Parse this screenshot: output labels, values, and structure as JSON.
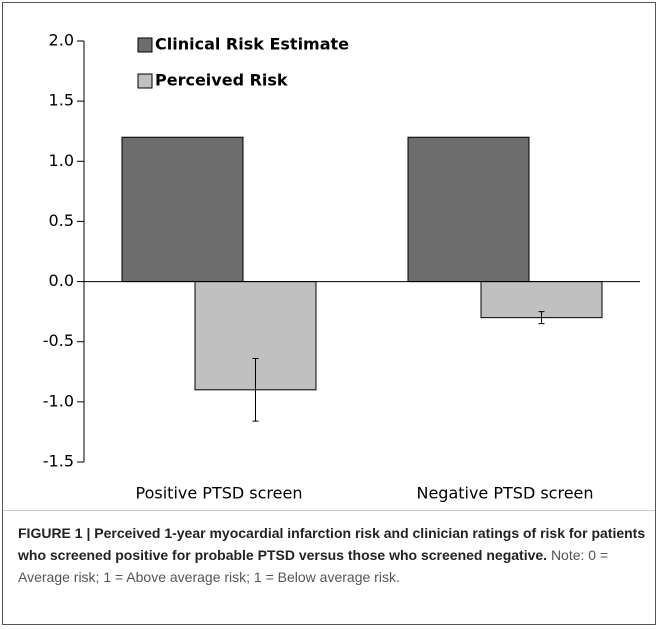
{
  "chart_data": {
    "type": "bar",
    "categories": [
      "Positive PTSD screen",
      "Negative PTSD screen"
    ],
    "series": [
      {
        "name": "Clinical Risk Estimate",
        "color": "#6d6d6d",
        "values": [
          1.2,
          1.2
        ]
      },
      {
        "name": "Perceived Risk",
        "color": "#c0c0c0",
        "values": [
          -0.9,
          -0.3
        ],
        "errors": [
          0.26,
          0.05
        ]
      }
    ],
    "ylim": [
      -1.5,
      2.0
    ],
    "yticks": [
      {
        "value": -1.5,
        "label": "-1.5"
      },
      {
        "value": -1.0,
        "label": "-1.0"
      },
      {
        "value": -0.5,
        "label": "-0.5"
      },
      {
        "value": 0,
        "label": "0.0"
      },
      {
        "value": 0.5,
        "label": "0.5"
      },
      {
        "value": 1.0,
        "label": "1.0"
      },
      {
        "value": 1.5,
        "label": "1.5"
      },
      {
        "value": 2.0,
        "label": "2.0"
      }
    ],
    "grid": false
  },
  "caption": {
    "label": "FIGURE 1 |",
    "title": "Perceived 1-year myocardial infarction risk and clinician ratings of risk for patients who screened positive for probable PTSD versus those who screened negative.",
    "note": "Note: 0 = Average risk; 1 = Above average risk; 1 = Below average risk."
  }
}
